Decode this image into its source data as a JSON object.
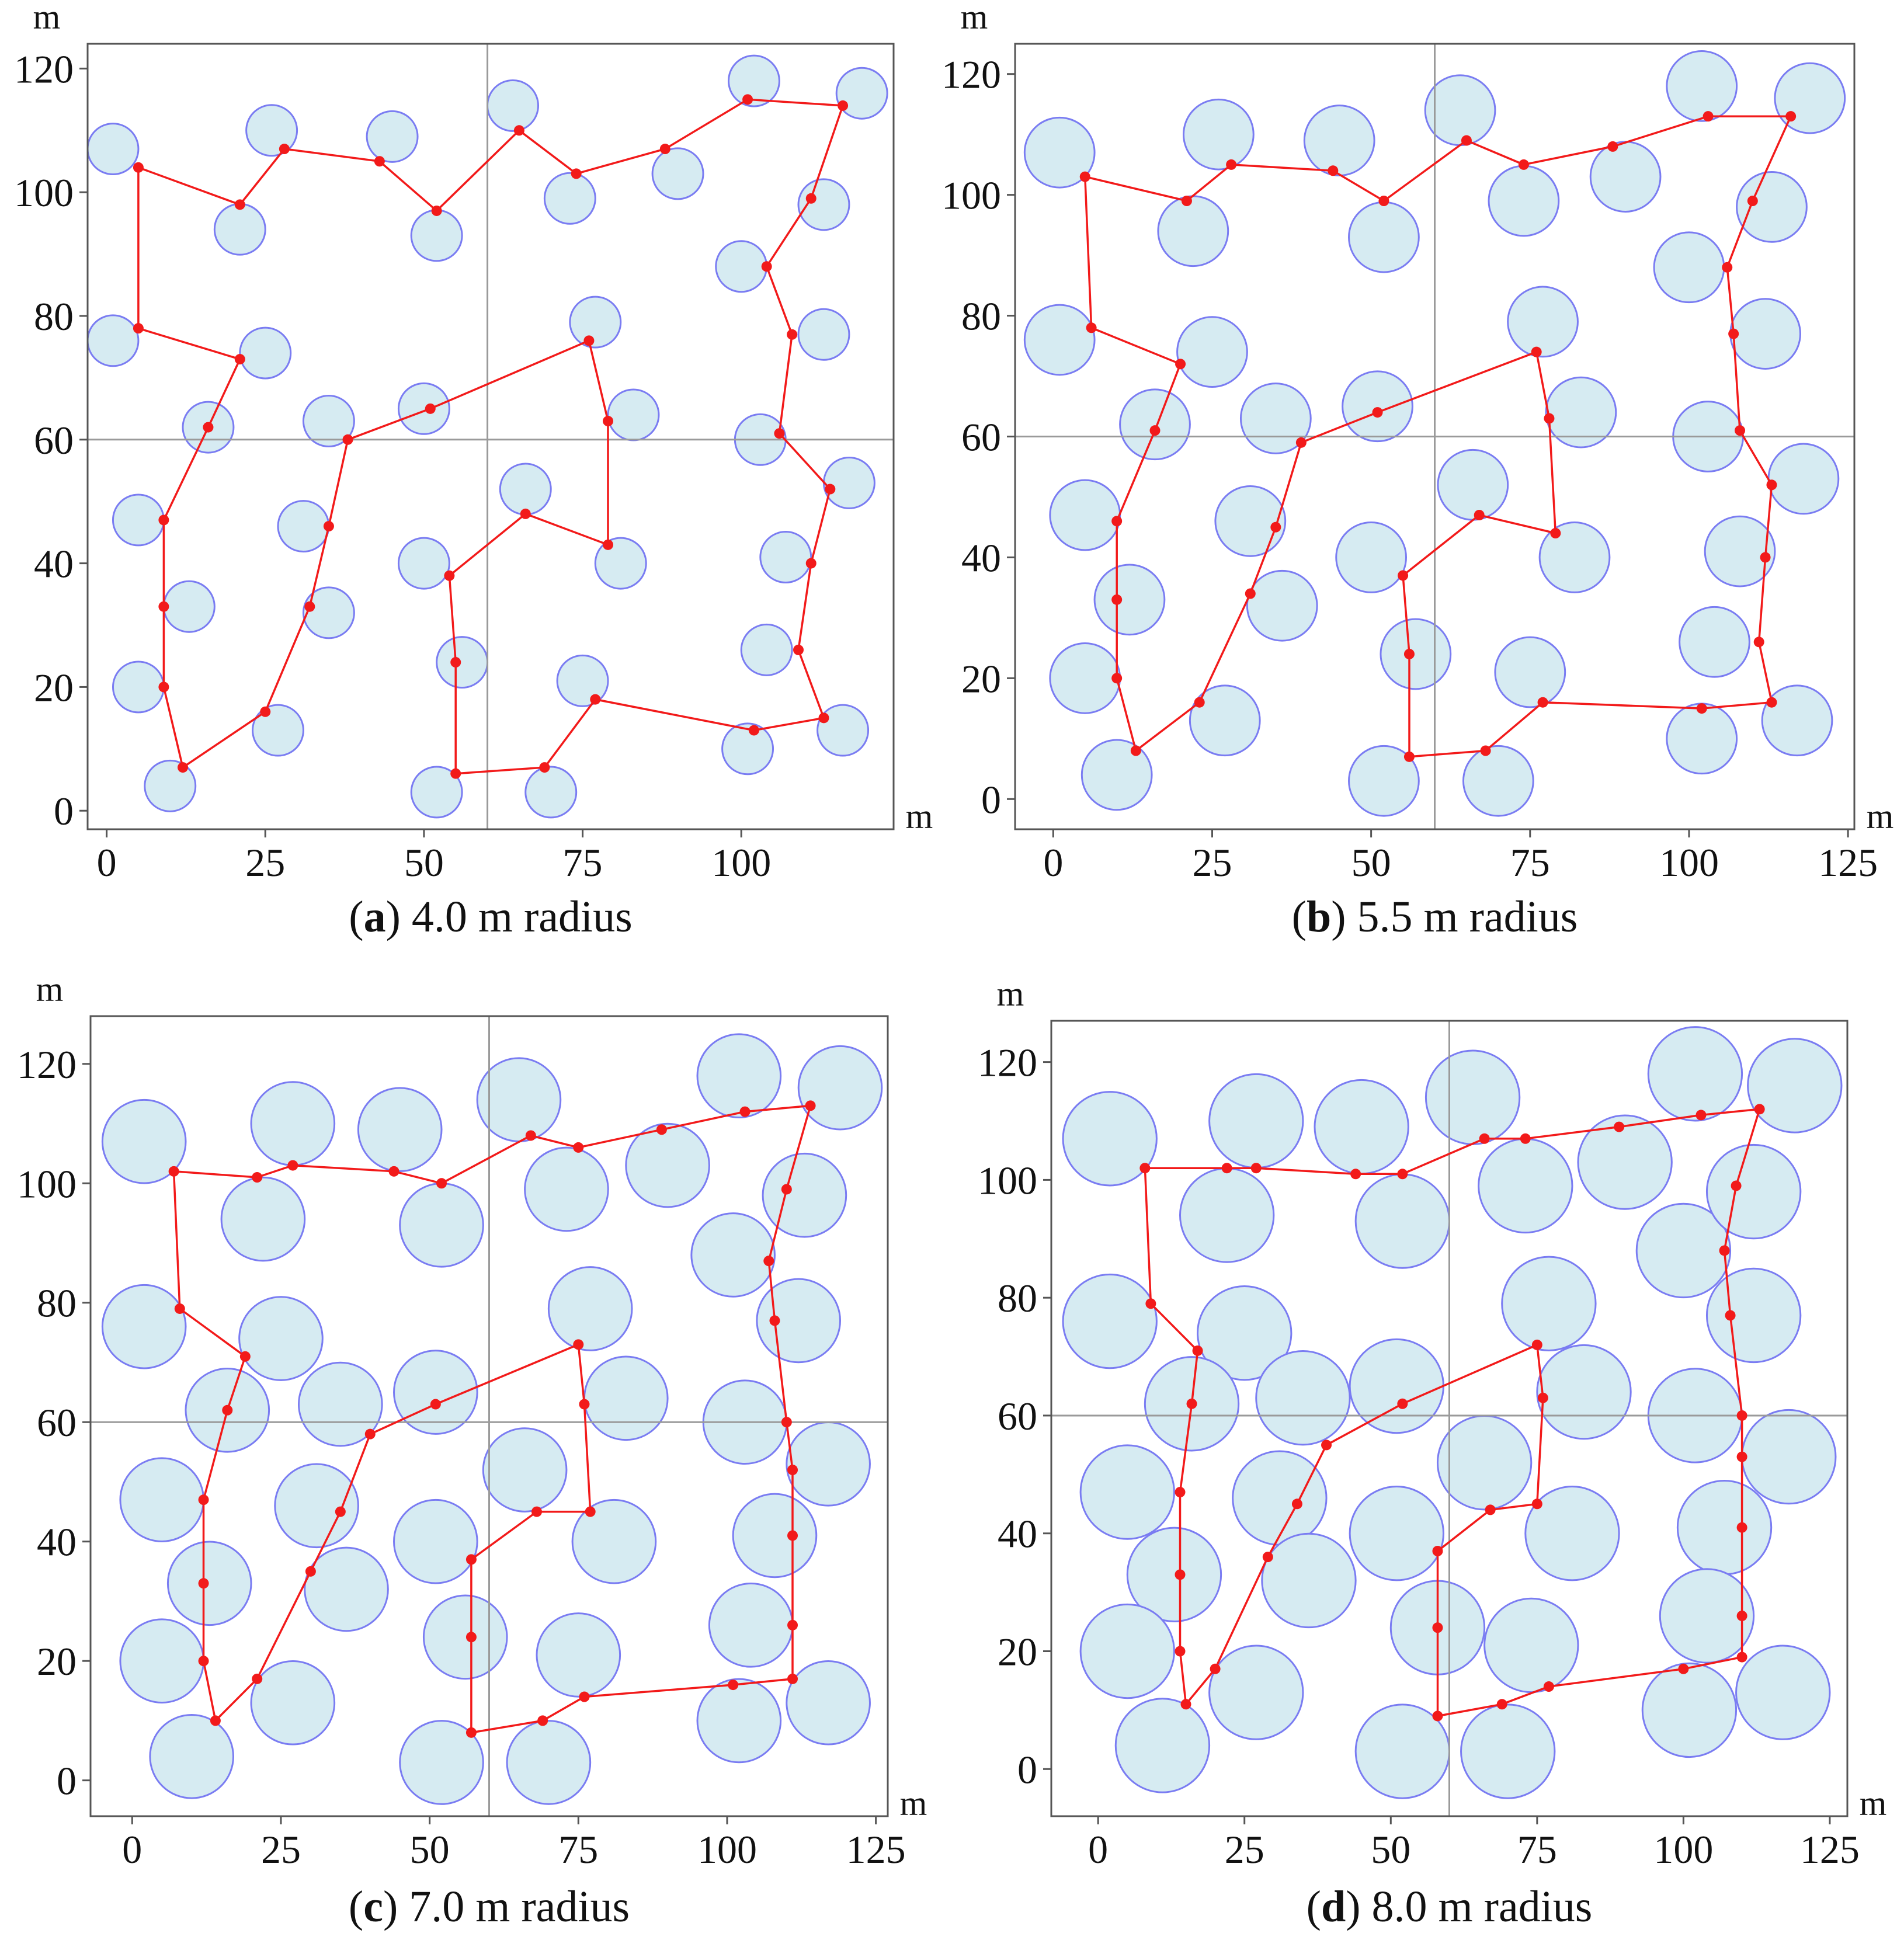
{
  "figure": {
    "description_panels": [
      "a",
      "b",
      "c",
      "d"
    ]
  },
  "chart_data": [
    {
      "type": "scatter",
      "panel": "(a)",
      "caption_letter": "a",
      "caption_text": " 4.0 m radius",
      "radius": 4.0,
      "xlabel": "m",
      "ylabel": "m",
      "xlim": [
        -3,
        124
      ],
      "ylim": [
        -3,
        124
      ],
      "xticks": [
        0,
        25,
        50,
        75,
        100
      ],
      "yticks": [
        0,
        20,
        40,
        60,
        80,
        100,
        120
      ],
      "grid": false,
      "reference_lines": {
        "x": 60,
        "y": 60
      },
      "circles": [
        [
          1,
          107
        ],
        [
          26,
          110
        ],
        [
          45,
          109
        ],
        [
          64,
          114
        ],
        [
          102,
          118
        ],
        [
          119,
          116
        ],
        [
          21,
          94
        ],
        [
          52,
          93
        ],
        [
          73,
          99
        ],
        [
          90,
          103
        ],
        [
          100,
          88
        ],
        [
          113,
          98
        ],
        [
          1,
          76
        ],
        [
          25,
          74
        ],
        [
          77,
          79
        ],
        [
          113,
          77
        ],
        [
          16,
          62
        ],
        [
          35,
          63
        ],
        [
          50,
          65
        ],
        [
          83,
          64
        ],
        [
          103,
          60
        ],
        [
          5,
          47
        ],
        [
          31,
          46
        ],
        [
          66,
          52
        ],
        [
          117,
          53
        ],
        [
          13,
          33
        ],
        [
          35,
          32
        ],
        [
          50,
          40
        ],
        [
          81,
          40
        ],
        [
          107,
          41
        ],
        [
          104,
          26
        ],
        [
          5,
          20
        ],
        [
          27,
          13
        ],
        [
          56,
          24
        ],
        [
          75,
          21
        ],
        [
          116,
          13
        ],
        [
          10,
          4
        ],
        [
          52,
          3
        ],
        [
          70,
          3
        ],
        [
          101,
          10
        ]
      ],
      "path": [
        [
          5,
          104
        ],
        [
          5,
          78
        ],
        [
          21,
          73
        ],
        [
          16,
          62
        ],
        [
          9,
          47
        ],
        [
          9,
          33
        ],
        [
          9,
          20
        ],
        [
          12,
          7
        ],
        [
          25,
          16
        ],
        [
          32,
          33
        ],
        [
          35,
          46
        ],
        [
          38,
          60
        ],
        [
          51,
          65
        ],
        [
          76,
          76
        ],
        [
          79,
          63
        ],
        [
          79,
          43
        ],
        [
          66,
          48
        ],
        [
          54,
          38
        ],
        [
          55,
          24
        ],
        [
          55,
          6
        ],
        [
          69,
          7
        ],
        [
          77,
          18
        ],
        [
          102,
          13
        ],
        [
          113,
          15
        ],
        [
          109,
          26
        ],
        [
          111,
          40
        ],
        [
          114,
          52
        ],
        [
          106,
          61
        ],
        [
          108,
          77
        ],
        [
          104,
          88
        ],
        [
          111,
          99
        ],
        [
          116,
          114
        ],
        [
          101,
          115
        ],
        [
          88,
          107
        ],
        [
          74,
          103
        ],
        [
          65,
          110
        ],
        [
          52,
          97
        ],
        [
          43,
          105
        ],
        [
          28,
          107
        ],
        [
          21,
          98
        ],
        [
          5,
          104
        ]
      ]
    },
    {
      "type": "scatter",
      "panel": "(b)",
      "caption_letter": "b",
      "caption_text": " 5.5 m radius",
      "radius": 5.5,
      "xlabel": "m",
      "ylabel": "m",
      "xlim": [
        -6,
        126
      ],
      "ylim": [
        -5,
        125
      ],
      "xticks": [
        0,
        25,
        50,
        75,
        100,
        125
      ],
      "yticks": [
        0,
        20,
        40,
        60,
        80,
        100,
        120
      ],
      "grid": false,
      "reference_lines": {
        "x": 60,
        "y": 60
      },
      "circles": [
        [
          1,
          107
        ],
        [
          26,
          110
        ],
        [
          45,
          109
        ],
        [
          64,
          114
        ],
        [
          102,
          118
        ],
        [
          119,
          116
        ],
        [
          22,
          94
        ],
        [
          52,
          93
        ],
        [
          74,
          99
        ],
        [
          90,
          103
        ],
        [
          100,
          88
        ],
        [
          113,
          98
        ],
        [
          1,
          76
        ],
        [
          25,
          74
        ],
        [
          77,
          79
        ],
        [
          112,
          77
        ],
        [
          16,
          62
        ],
        [
          35,
          63
        ],
        [
          51,
          65
        ],
        [
          83,
          64
        ],
        [
          103,
          60
        ],
        [
          5,
          47
        ],
        [
          31,
          46
        ],
        [
          66,
          52
        ],
        [
          118,
          53
        ],
        [
          12,
          33
        ],
        [
          36,
          32
        ],
        [
          50,
          40
        ],
        [
          82,
          40
        ],
        [
          108,
          41
        ],
        [
          104,
          26
        ],
        [
          5,
          20
        ],
        [
          27,
          13
        ],
        [
          57,
          24
        ],
        [
          75,
          21
        ],
        [
          117,
          13
        ],
        [
          10,
          4
        ],
        [
          52,
          3
        ],
        [
          70,
          3
        ],
        [
          102,
          10
        ]
      ],
      "path": [
        [
          5,
          103
        ],
        [
          6,
          78
        ],
        [
          20,
          72
        ],
        [
          16,
          61
        ],
        [
          10,
          46
        ],
        [
          10,
          33
        ],
        [
          10,
          20
        ],
        [
          13,
          8
        ],
        [
          23,
          16
        ],
        [
          31,
          34
        ],
        [
          35,
          45
        ],
        [
          39,
          59
        ],
        [
          51,
          64
        ],
        [
          76,
          74
        ],
        [
          78,
          63
        ],
        [
          79,
          44
        ],
        [
          67,
          47
        ],
        [
          55,
          37
        ],
        [
          56,
          24
        ],
        [
          56,
          7
        ],
        [
          68,
          8
        ],
        [
          77,
          16
        ],
        [
          102,
          15
        ],
        [
          113,
          16
        ],
        [
          111,
          26
        ],
        [
          112,
          40
        ],
        [
          113,
          52
        ],
        [
          108,
          61
        ],
        [
          107,
          77
        ],
        [
          106,
          88
        ],
        [
          110,
          99
        ],
        [
          116,
          113
        ],
        [
          103,
          113
        ],
        [
          88,
          108
        ],
        [
          74,
          105
        ],
        [
          65,
          109
        ],
        [
          52,
          99
        ],
        [
          44,
          104
        ],
        [
          28,
          105
        ],
        [
          21,
          99
        ],
        [
          5,
          103
        ]
      ]
    },
    {
      "type": "scatter",
      "panel": "(c)",
      "caption_letter": "c",
      "caption_text": " 7.0 m radius",
      "radius": 7.0,
      "xlabel": "m",
      "ylabel": "m",
      "xlim": [
        -7,
        127
      ],
      "ylim": [
        -6,
        128
      ],
      "xticks": [
        0,
        25,
        50,
        75,
        100,
        125
      ],
      "yticks": [
        0,
        20,
        40,
        60,
        80,
        100,
        120
      ],
      "grid": false,
      "reference_lines": {
        "x": 60,
        "y": 60
      },
      "circles": [
        [
          2,
          107
        ],
        [
          27,
          110
        ],
        [
          45,
          109
        ],
        [
          65,
          114
        ],
        [
          102,
          118
        ],
        [
          119,
          116
        ],
        [
          22,
          94
        ],
        [
          52,
          93
        ],
        [
          73,
          99
        ],
        [
          90,
          103
        ],
        [
          101,
          88
        ],
        [
          113,
          98
        ],
        [
          2,
          76
        ],
        [
          25,
          74
        ],
        [
          77,
          79
        ],
        [
          112,
          77
        ],
        [
          16,
          62
        ],
        [
          35,
          63
        ],
        [
          51,
          65
        ],
        [
          83,
          64
        ],
        [
          103,
          60
        ],
        [
          5,
          47
        ],
        [
          31,
          46
        ],
        [
          66,
          52
        ],
        [
          117,
          53
        ],
        [
          13,
          33
        ],
        [
          36,
          32
        ],
        [
          51,
          40
        ],
        [
          81,
          40
        ],
        [
          108,
          41
        ],
        [
          104,
          26
        ],
        [
          5,
          20
        ],
        [
          27,
          13
        ],
        [
          56,
          24
        ],
        [
          75,
          21
        ],
        [
          117,
          13
        ],
        [
          10,
          4
        ],
        [
          52,
          3
        ],
        [
          70,
          3
        ],
        [
          102,
          10
        ]
      ],
      "path": [
        [
          7,
          102
        ],
        [
          8,
          79
        ],
        [
          19,
          71
        ],
        [
          16,
          62
        ],
        [
          12,
          47
        ],
        [
          12,
          33
        ],
        [
          12,
          20
        ],
        [
          14,
          10
        ],
        [
          21,
          17
        ],
        [
          30,
          35
        ],
        [
          35,
          45
        ],
        [
          40,
          58
        ],
        [
          51,
          63
        ],
        [
          75,
          73
        ],
        [
          76,
          63
        ],
        [
          77,
          45
        ],
        [
          68,
          45
        ],
        [
          57,
          37
        ],
        [
          57,
          24
        ],
        [
          57,
          8
        ],
        [
          69,
          10
        ],
        [
          76,
          14
        ],
        [
          101,
          16
        ],
        [
          111,
          17
        ],
        [
          111,
          26
        ],
        [
          111,
          41
        ],
        [
          111,
          52
        ],
        [
          110,
          60
        ],
        [
          108,
          77
        ],
        [
          107,
          87
        ],
        [
          110,
          99
        ],
        [
          114,
          113
        ],
        [
          103,
          112
        ],
        [
          89,
          109
        ],
        [
          75,
          106
        ],
        [
          67,
          108
        ],
        [
          52,
          100
        ],
        [
          44,
          102
        ],
        [
          27,
          103
        ],
        [
          21,
          101
        ],
        [
          7,
          102
        ]
      ]
    },
    {
      "type": "scatter",
      "panel": "(d)",
      "caption_letter": "d",
      "caption_text": " 8.0 m radius",
      "radius": 8.0,
      "xlabel": "m",
      "ylabel": "m",
      "xlim": [
        -8,
        128
      ],
      "ylim": [
        -8,
        127
      ],
      "xticks": [
        0,
        25,
        50,
        75,
        100,
        125
      ],
      "yticks": [
        0,
        20,
        40,
        60,
        80,
        100,
        120
      ],
      "grid": false,
      "reference_lines": {
        "x": 60,
        "y": 60
      },
      "circles": [
        [
          2,
          107
        ],
        [
          27,
          110
        ],
        [
          45,
          109
        ],
        [
          64,
          114
        ],
        [
          102,
          118
        ],
        [
          119,
          116
        ],
        [
          22,
          94
        ],
        [
          52,
          93
        ],
        [
          73,
          99
        ],
        [
          90,
          103
        ],
        [
          100,
          88
        ],
        [
          112,
          98
        ],
        [
          2,
          76
        ],
        [
          25,
          74
        ],
        [
          77,
          79
        ],
        [
          112,
          77
        ],
        [
          16,
          62
        ],
        [
          35,
          63
        ],
        [
          51,
          65
        ],
        [
          83,
          64
        ],
        [
          102,
          60
        ],
        [
          5,
          47
        ],
        [
          31,
          46
        ],
        [
          66,
          52
        ],
        [
          118,
          53
        ],
        [
          13,
          33
        ],
        [
          36,
          32
        ],
        [
          51,
          40
        ],
        [
          81,
          40
        ],
        [
          107,
          41
        ],
        [
          104,
          26
        ],
        [
          5,
          20
        ],
        [
          27,
          13
        ],
        [
          58,
          24
        ],
        [
          74,
          21
        ],
        [
          117,
          13
        ],
        [
          11,
          4
        ],
        [
          52,
          3
        ],
        [
          70,
          3
        ],
        [
          101,
          10
        ]
      ],
      "path": [
        [
          8,
          102
        ],
        [
          9,
          79
        ],
        [
          17,
          71
        ],
        [
          16,
          62
        ],
        [
          14,
          47
        ],
        [
          14,
          33
        ],
        [
          14,
          20
        ],
        [
          15,
          11
        ],
        [
          20,
          17
        ],
        [
          29,
          36
        ],
        [
          34,
          45
        ],
        [
          39,
          55
        ],
        [
          52,
          62
        ],
        [
          75,
          72
        ],
        [
          76,
          63
        ],
        [
          75,
          45
        ],
        [
          67,
          44
        ],
        [
          58,
          37
        ],
        [
          58,
          24
        ],
        [
          58,
          9
        ],
        [
          69,
          11
        ],
        [
          77,
          14
        ],
        [
          100,
          17
        ],
        [
          110,
          19
        ],
        [
          110,
          26
        ],
        [
          110,
          41
        ],
        [
          110,
          53
        ],
        [
          110,
          60
        ],
        [
          108,
          77
        ],
        [
          107,
          88
        ],
        [
          109,
          99
        ],
        [
          113,
          112
        ],
        [
          103,
          111
        ],
        [
          89,
          109
        ],
        [
          73,
          107
        ],
        [
          66,
          107
        ],
        [
          52,
          101
        ],
        [
          44,
          101
        ],
        [
          27,
          102
        ],
        [
          22,
          102
        ],
        [
          8,
          102
        ]
      ]
    }
  ]
}
